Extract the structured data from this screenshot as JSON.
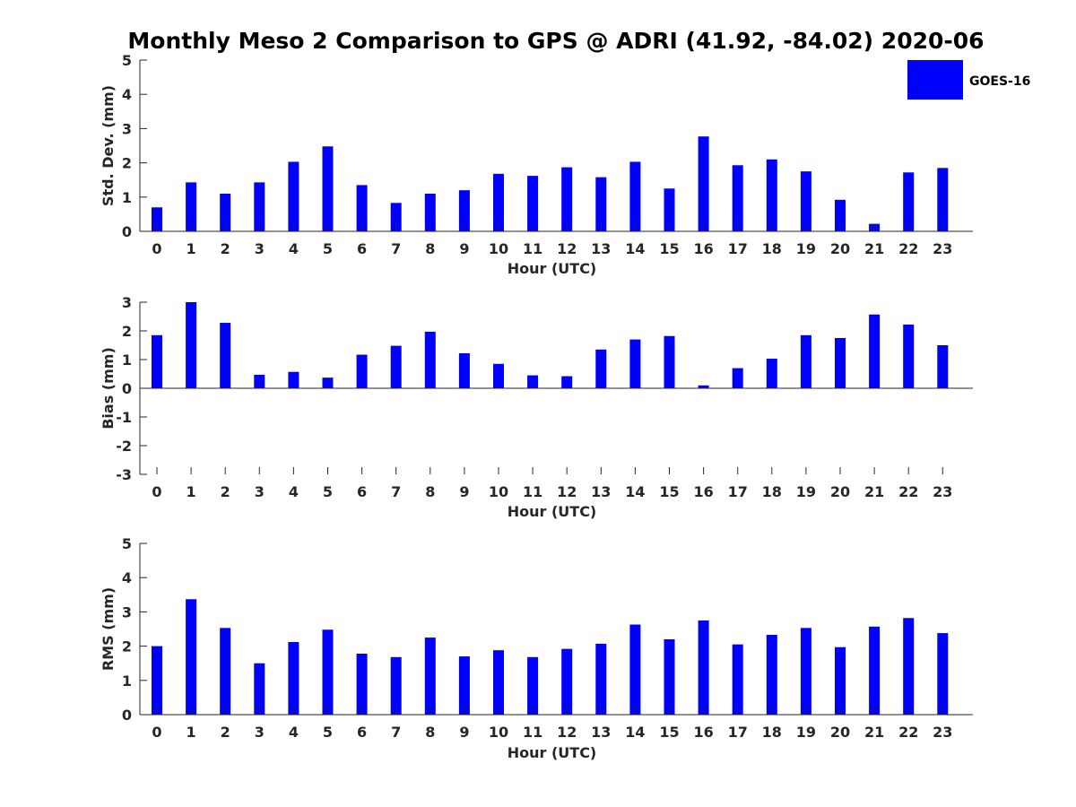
{
  "chart_data": {
    "title": "Monthly Meso 2 Comparison to GPS @ ADRI (41.92, -84.02) 2020-06",
    "type": "bar",
    "legend": {
      "entries": [
        "GOES-16"
      ],
      "placement": "top-right",
      "color": "#0000ff"
    },
    "categories": [
      "0",
      "1",
      "2",
      "3",
      "4",
      "5",
      "6",
      "7",
      "8",
      "9",
      "10",
      "11",
      "12",
      "13",
      "14",
      "15",
      "16",
      "17",
      "18",
      "19",
      "20",
      "21",
      "22",
      "23"
    ],
    "panels": [
      {
        "id": "std",
        "type": "bar",
        "xlabel": "Hour (UTC)",
        "ylabel": "Std. Dev. (mm)",
        "ylim": [
          0,
          5
        ],
        "yticks": [
          0,
          1,
          2,
          3,
          4,
          5
        ],
        "series": [
          {
            "name": "GOES-16",
            "color": "#0000ff",
            "values": [
              0.7,
              1.43,
              1.1,
              1.43,
              2.03,
              2.48,
              1.35,
              0.83,
              1.1,
              1.2,
              1.68,
              1.62,
              1.87,
              1.58,
              2.03,
              1.25,
              2.77,
              1.93,
              2.1,
              1.75,
              0.92,
              0.22,
              1.72,
              1.85
            ]
          }
        ]
      },
      {
        "id": "bias",
        "type": "bar",
        "xlabel": "Hour (UTC)",
        "ylabel": "Bias (mm)",
        "ylim": [
          -3,
          3
        ],
        "yticks": [
          -3,
          -2,
          -1,
          0,
          1,
          2,
          3
        ],
        "series": [
          {
            "name": "GOES-16",
            "color": "#0000ff",
            "values": [
              1.85,
              3.0,
              2.28,
              0.47,
              0.57,
              0.37,
              1.17,
              1.48,
              1.97,
              1.22,
              0.85,
              0.45,
              0.42,
              1.35,
              1.7,
              1.82,
              0.1,
              0.7,
              1.03,
              1.85,
              1.75,
              2.57,
              2.22,
              1.5
            ]
          }
        ]
      },
      {
        "id": "rms",
        "type": "bar",
        "xlabel": "Hour (UTC)",
        "ylabel": "RMS (mm)",
        "ylim": [
          0,
          5
        ],
        "yticks": [
          0,
          1,
          2,
          3,
          4,
          5
        ],
        "series": [
          {
            "name": "GOES-16",
            "color": "#0000ff",
            "values": [
              2.0,
              3.37,
              2.53,
              1.5,
              2.12,
              2.48,
              1.78,
              1.68,
              2.25,
              1.7,
              1.88,
              1.68,
              1.92,
              2.07,
              2.63,
              2.2,
              2.75,
              2.05,
              2.33,
              2.53,
              1.97,
              2.57,
              2.82,
              2.38
            ]
          }
        ]
      }
    ]
  }
}
